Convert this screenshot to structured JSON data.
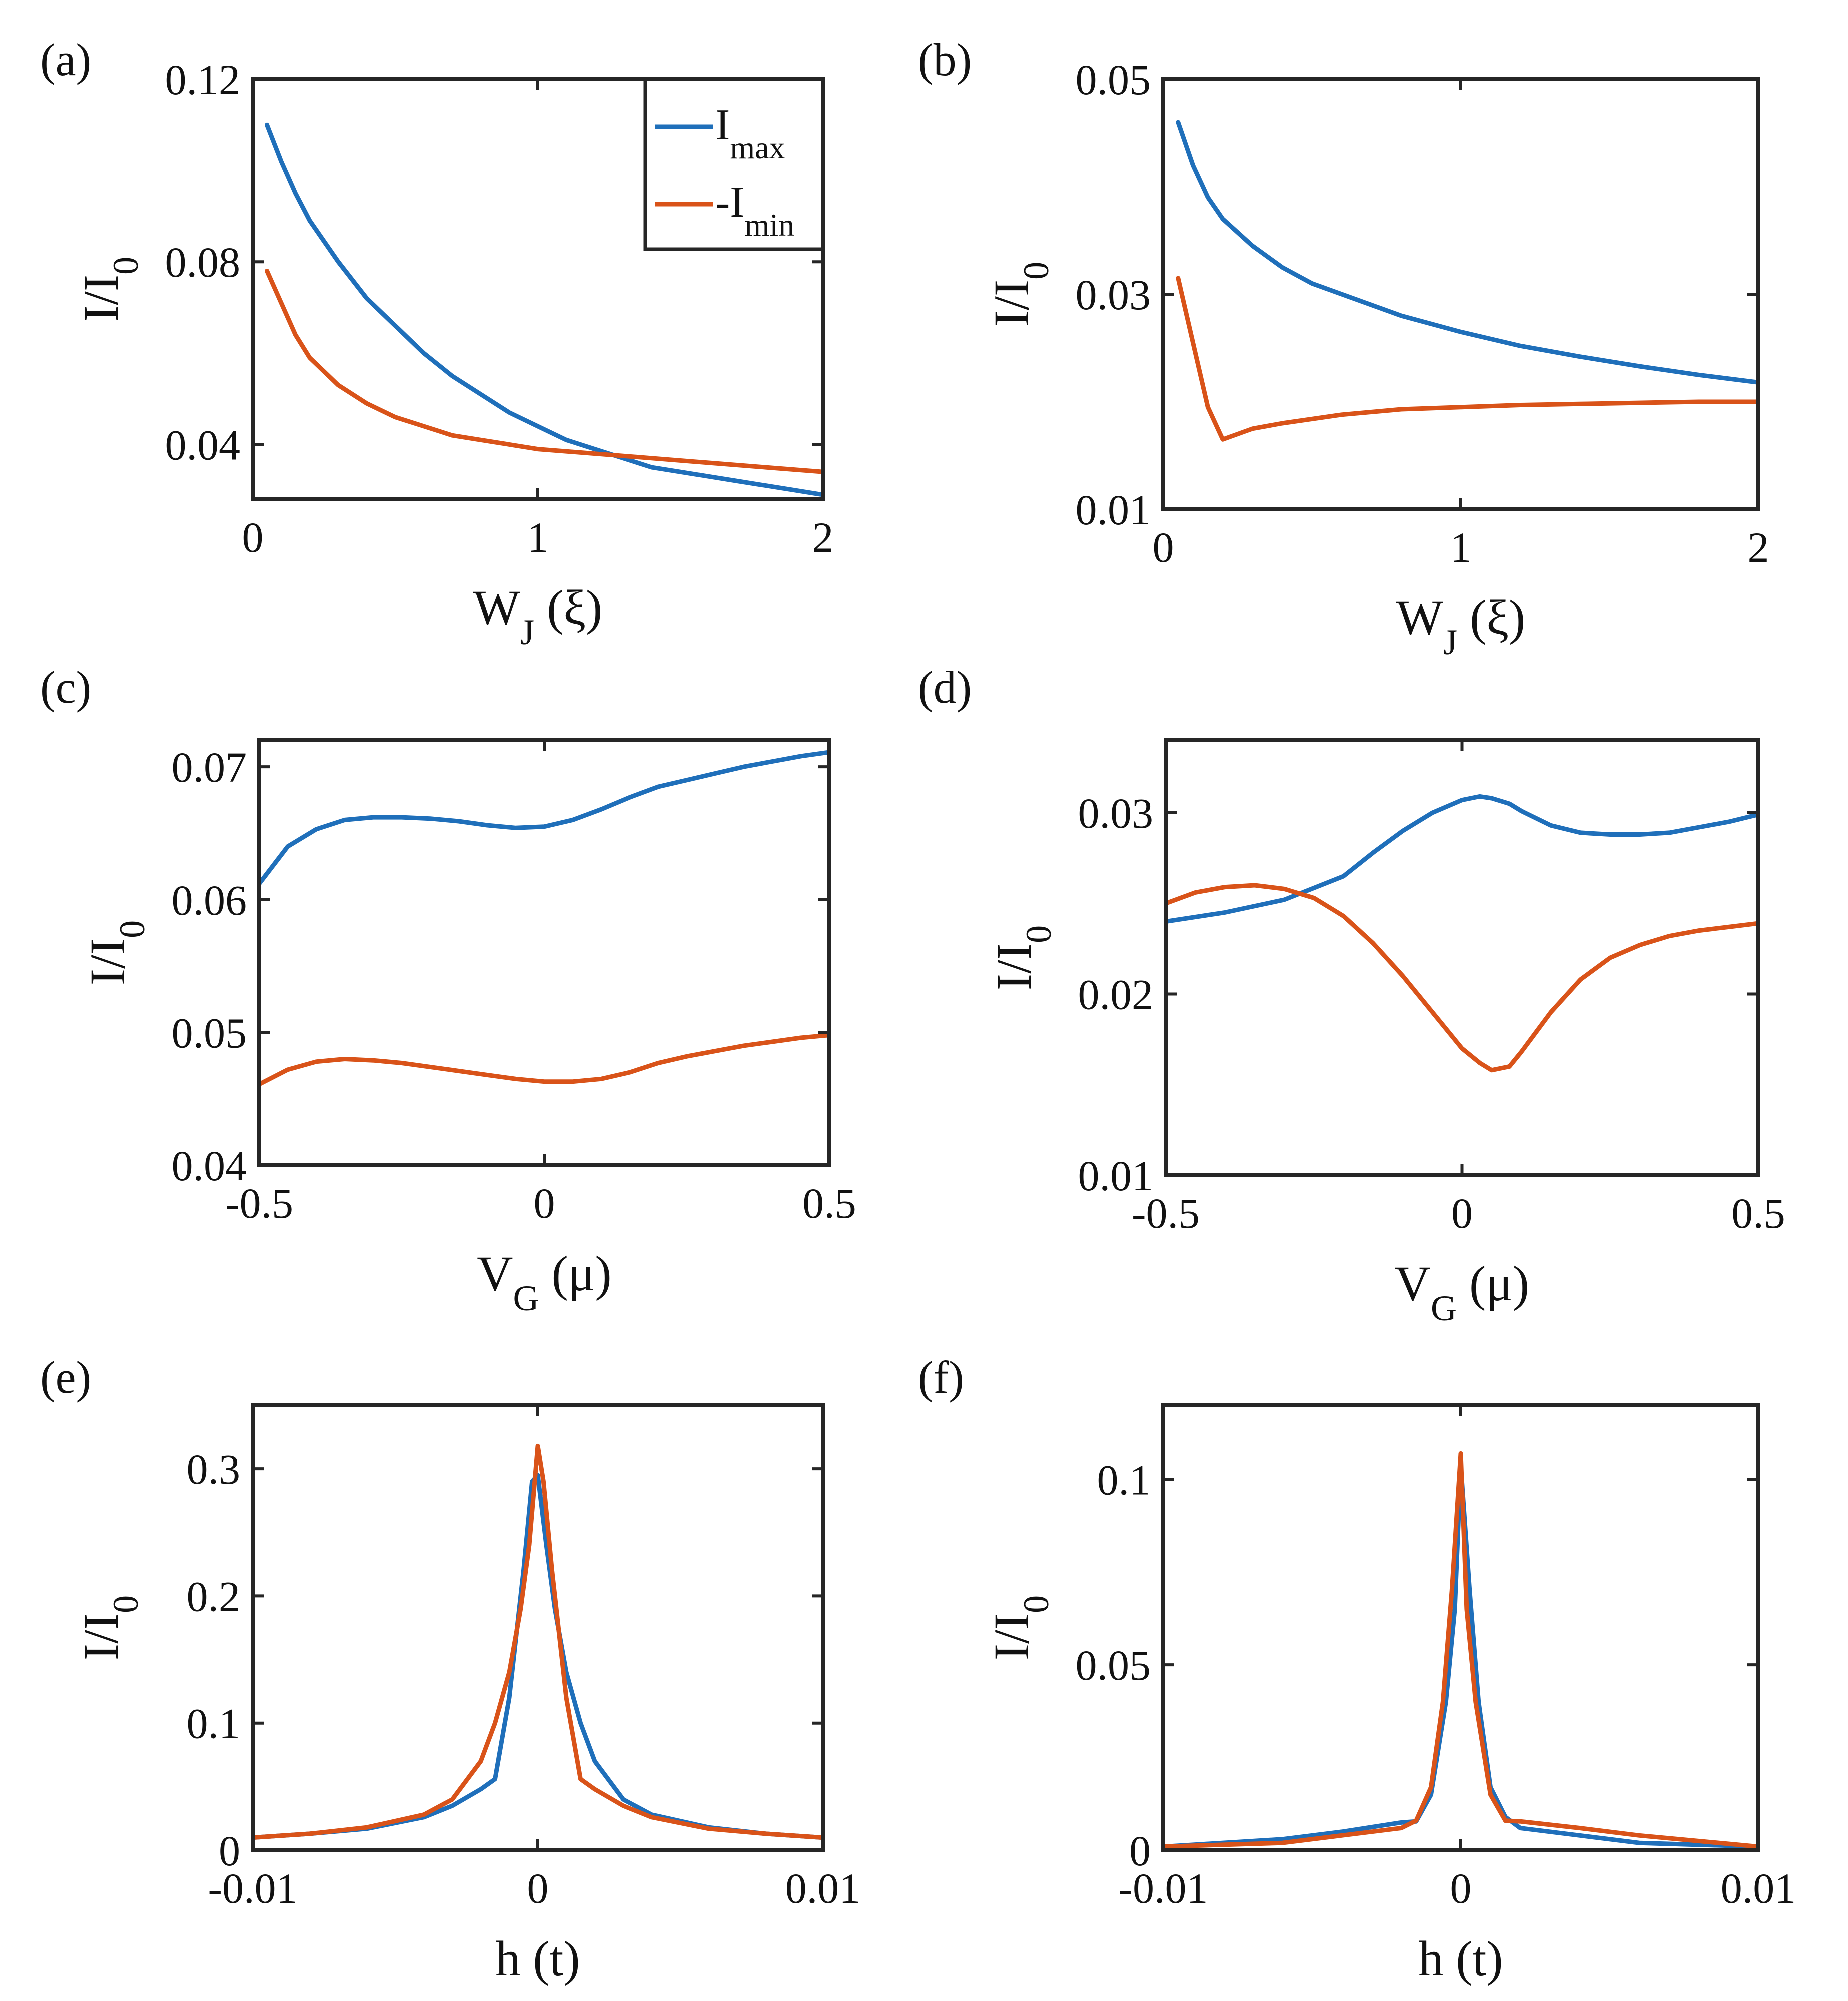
{
  "figure": {
    "description_free": true
  },
  "colors": {
    "imax": "#1f6fba",
    "imin": "#d95319",
    "axis": "#262626"
  },
  "legend": {
    "items": [
      {
        "main": "I",
        "sub": "max",
        "color": "#1f6fba"
      },
      {
        "main": "-I",
        "sub": "min",
        "color": "#d95319"
      }
    ]
  },
  "chart_data": [
    {
      "panel": "(a)",
      "type": "line",
      "xlabel": {
        "main": "W",
        "sub": "J",
        "unit": " (ξ)"
      },
      "ylabel": {
        "main": "I/I",
        "sub": "0"
      },
      "xlim": [
        0,
        2
      ],
      "ylim": [
        0.028,
        0.12
      ],
      "xticks": [
        0,
        1,
        2
      ],
      "xtick_labels": [
        "0",
        "1",
        "2"
      ],
      "yticks": [
        0.04,
        0.08,
        0.12
      ],
      "ytick_labels": [
        "0.04",
        "0.08",
        "0.12"
      ],
      "legend": true,
      "series": [
        {
          "name": "I_max",
          "color": "#1f6fba",
          "x": [
            0.05,
            0.1,
            0.15,
            0.2,
            0.3,
            0.4,
            0.5,
            0.6,
            0.7,
            0.8,
            0.9,
            1.0,
            1.1,
            1.2,
            1.3,
            1.4,
            1.5,
            1.6,
            1.7,
            1.8,
            1.9,
            2.0
          ],
          "y": [
            0.11,
            0.102,
            0.095,
            0.089,
            0.08,
            0.072,
            0.066,
            0.06,
            0.055,
            0.051,
            0.047,
            0.044,
            0.041,
            0.039,
            0.037,
            0.035,
            0.034,
            0.033,
            0.032,
            0.031,
            0.03,
            0.029
          ]
        },
        {
          "name": "-I_min",
          "color": "#d95319",
          "x": [
            0.05,
            0.1,
            0.15,
            0.2,
            0.3,
            0.4,
            0.5,
            0.6,
            0.7,
            0.8,
            0.9,
            1.0,
            1.2,
            1.4,
            1.6,
            1.8,
            2.0
          ],
          "y": [
            0.078,
            0.071,
            0.064,
            0.059,
            0.053,
            0.049,
            0.046,
            0.044,
            0.042,
            0.041,
            0.04,
            0.039,
            0.038,
            0.037,
            0.036,
            0.035,
            0.034
          ]
        }
      ]
    },
    {
      "panel": "(b)",
      "type": "line",
      "xlabel": {
        "main": "W",
        "sub": "J",
        "unit": " (ξ)"
      },
      "ylabel": {
        "main": "I/I",
        "sub": "0"
      },
      "xlim": [
        0,
        2
      ],
      "ylim": [
        0.01,
        0.05
      ],
      "xticks": [
        0,
        1,
        2
      ],
      "xtick_labels": [
        "0",
        "1",
        "2"
      ],
      "yticks": [
        0.01,
        0.03,
        0.05
      ],
      "ytick_labels": [
        "0.01",
        "0.03",
        "0.05"
      ],
      "legend": false,
      "series": [
        {
          "name": "I_max",
          "color": "#1f6fba",
          "x": [
            0.05,
            0.1,
            0.15,
            0.2,
            0.3,
            0.4,
            0.5,
            0.6,
            0.8,
            1.0,
            1.2,
            1.4,
            1.6,
            1.8,
            2.0
          ],
          "y": [
            0.046,
            0.042,
            0.039,
            0.037,
            0.0345,
            0.0325,
            0.031,
            0.03,
            0.028,
            0.0265,
            0.0252,
            0.0242,
            0.0233,
            0.0225,
            0.0218
          ]
        },
        {
          "name": "-I_min",
          "color": "#d95319",
          "x": [
            0.05,
            0.1,
            0.15,
            0.2,
            0.3,
            0.4,
            0.6,
            0.8,
            1.0,
            1.2,
            1.4,
            1.6,
            1.8,
            2.0
          ],
          "y": [
            0.0315,
            0.0255,
            0.0195,
            0.0165,
            0.0175,
            0.018,
            0.0188,
            0.0193,
            0.0195,
            0.0197,
            0.0198,
            0.0199,
            0.02,
            0.02
          ]
        }
      ]
    },
    {
      "panel": "(c)",
      "type": "line",
      "xlabel": {
        "main": "V",
        "sub": "G",
        "unit": " (μ)"
      },
      "ylabel": {
        "main": "I/I",
        "sub": "0"
      },
      "xlim": [
        -0.5,
        0.5
      ],
      "ylim": [
        0.04,
        0.072
      ],
      "xticks": [
        -0.5,
        0,
        0.5
      ],
      "xtick_labels": [
        "-0.5",
        "0",
        "0.5"
      ],
      "yticks": [
        0.04,
        0.05,
        0.06,
        0.07
      ],
      "ytick_labels": [
        "0.04",
        "0.05",
        "0.06",
        "0.07"
      ],
      "legend": false,
      "series": [
        {
          "name": "I_max",
          "color": "#1f6fba",
          "x": [
            -0.5,
            -0.45,
            -0.4,
            -0.35,
            -0.3,
            -0.25,
            -0.2,
            -0.15,
            -0.1,
            -0.05,
            0,
            0.05,
            0.1,
            0.15,
            0.2,
            0.25,
            0.3,
            0.35,
            0.4,
            0.45,
            0.5
          ],
          "y": [
            0.0612,
            0.064,
            0.0653,
            0.066,
            0.0662,
            0.0662,
            0.0661,
            0.0659,
            0.0656,
            0.0654,
            0.0655,
            0.066,
            0.0668,
            0.0677,
            0.0685,
            0.069,
            0.0695,
            0.07,
            0.0704,
            0.0708,
            0.0711
          ]
        },
        {
          "name": "-I_min",
          "color": "#d95319",
          "x": [
            -0.5,
            -0.45,
            -0.4,
            -0.35,
            -0.3,
            -0.25,
            -0.2,
            -0.15,
            -0.1,
            -0.05,
            0,
            0.05,
            0.1,
            0.15,
            0.2,
            0.25,
            0.3,
            0.35,
            0.4,
            0.45,
            0.5
          ],
          "y": [
            0.0461,
            0.0472,
            0.0478,
            0.048,
            0.0479,
            0.0477,
            0.0474,
            0.0471,
            0.0468,
            0.0465,
            0.0463,
            0.0463,
            0.0465,
            0.047,
            0.0477,
            0.0482,
            0.0486,
            0.049,
            0.0493,
            0.0496,
            0.0498
          ]
        }
      ]
    },
    {
      "panel": "(d)",
      "type": "line",
      "xlabel": {
        "main": "V",
        "sub": "G",
        "unit": " (μ)"
      },
      "ylabel": {
        "main": "I/I",
        "sub": "0"
      },
      "xlim": [
        -0.5,
        0.5
      ],
      "ylim": [
        0.01,
        0.034
      ],
      "xticks": [
        -0.5,
        0,
        0.5
      ],
      "xtick_labels": [
        "-0.5",
        "0",
        "0.5"
      ],
      "yticks": [
        0.01,
        0.02,
        0.03
      ],
      "ytick_labels": [
        "0.01",
        "0.02",
        "0.03"
      ],
      "legend": false,
      "series": [
        {
          "name": "I_max",
          "color": "#1f6fba",
          "x": [
            -0.5,
            -0.4,
            -0.3,
            -0.2,
            -0.15,
            -0.1,
            -0.05,
            0,
            0.03,
            0.05,
            0.08,
            0.1,
            0.15,
            0.2,
            0.25,
            0.3,
            0.35,
            0.4,
            0.45,
            0.5
          ],
          "y": [
            0.024,
            0.0245,
            0.0252,
            0.0265,
            0.0278,
            0.029,
            0.03,
            0.0307,
            0.0309,
            0.0308,
            0.0305,
            0.0301,
            0.0293,
            0.0289,
            0.0288,
            0.0288,
            0.0289,
            0.0292,
            0.0295,
            0.0299
          ]
        },
        {
          "name": "-I_min",
          "color": "#d95319",
          "x": [
            -0.5,
            -0.45,
            -0.4,
            -0.35,
            -0.3,
            -0.25,
            -0.2,
            -0.15,
            -0.1,
            -0.05,
            0,
            0.03,
            0.05,
            0.08,
            0.1,
            0.15,
            0.2,
            0.25,
            0.3,
            0.35,
            0.4,
            0.45,
            0.5
          ],
          "y": [
            0.025,
            0.0256,
            0.0259,
            0.026,
            0.0258,
            0.0253,
            0.0243,
            0.0228,
            0.021,
            0.019,
            0.017,
            0.0162,
            0.0158,
            0.016,
            0.0168,
            0.019,
            0.0208,
            0.022,
            0.0227,
            0.0232,
            0.0235,
            0.0237,
            0.0239
          ]
        }
      ]
    },
    {
      "panel": "(e)",
      "type": "line",
      "xlabel": {
        "main": "h (t)",
        "sub": "",
        "unit": ""
      },
      "ylabel": {
        "main": "I/I",
        "sub": "0"
      },
      "xlim": [
        -0.01,
        0.01
      ],
      "ylim": [
        0,
        0.35
      ],
      "xticks": [
        -0.01,
        0,
        0.01
      ],
      "xtick_labels": [
        "-0.01",
        "0",
        "0.01"
      ],
      "yticks": [
        0,
        0.1,
        0.2,
        0.3
      ],
      "ytick_labels": [
        "0",
        "0.1",
        "0.2",
        "0.3"
      ],
      "legend": false,
      "series": [
        {
          "name": "I_max",
          "color": "#1f6fba",
          "x": [
            -0.01,
            -0.008,
            -0.006,
            -0.004,
            -0.003,
            -0.002,
            -0.0015,
            -0.001,
            -0.0005,
            -0.0002,
            0,
            0.0003,
            0.0006,
            0.001,
            0.0015,
            0.002,
            0.003,
            0.004,
            0.006,
            0.008,
            0.01
          ],
          "y": [
            0.01,
            0.013,
            0.017,
            0.026,
            0.035,
            0.048,
            0.056,
            0.12,
            0.22,
            0.29,
            0.295,
            0.24,
            0.19,
            0.14,
            0.1,
            0.07,
            0.04,
            0.028,
            0.018,
            0.013,
            0.01
          ]
        },
        {
          "name": "-I_min",
          "color": "#d95319",
          "x": [
            -0.01,
            -0.008,
            -0.006,
            -0.004,
            -0.003,
            -0.002,
            -0.0015,
            -0.001,
            -0.0006,
            -0.0003,
            0,
            0.0002,
            0.0005,
            0.001,
            0.0015,
            0.002,
            0.003,
            0.004,
            0.006,
            0.008,
            0.01
          ],
          "y": [
            0.01,
            0.013,
            0.018,
            0.028,
            0.04,
            0.07,
            0.1,
            0.14,
            0.19,
            0.24,
            0.318,
            0.29,
            0.22,
            0.12,
            0.056,
            0.048,
            0.035,
            0.026,
            0.017,
            0.013,
            0.01
          ]
        }
      ]
    },
    {
      "panel": "(f)",
      "type": "line",
      "xlabel": {
        "main": "h (t)",
        "sub": "",
        "unit": ""
      },
      "ylabel": {
        "main": "I/I",
        "sub": "0"
      },
      "xlim": [
        -0.01,
        0.01
      ],
      "ylim": [
        0,
        0.12
      ],
      "xticks": [
        -0.01,
        0,
        0.01
      ],
      "xtick_labels": [
        "-0.01",
        "0",
        "0.01"
      ],
      "yticks": [
        0,
        0.05,
        0.1
      ],
      "ytick_labels": [
        "0",
        "0.05",
        "0.1"
      ],
      "legend": false,
      "series": [
        {
          "name": "I_max",
          "color": "#1f6fba",
          "x": [
            -0.01,
            -0.006,
            -0.004,
            -0.002,
            -0.0015,
            -0.001,
            -0.0005,
            -0.0002,
            0,
            0.0003,
            0.0006,
            0.001,
            0.0015,
            0.002,
            0.004,
            0.006,
            0.01
          ],
          "y": [
            0.001,
            0.003,
            0.005,
            0.0075,
            0.0078,
            0.015,
            0.04,
            0.065,
            0.104,
            0.07,
            0.04,
            0.017,
            0.009,
            0.006,
            0.004,
            0.002,
            0.001
          ]
        },
        {
          "name": "-I_min",
          "color": "#d95319",
          "x": [
            -0.01,
            -0.006,
            -0.004,
            -0.002,
            -0.0015,
            -0.001,
            -0.0006,
            -0.0003,
            0,
            0.0002,
            0.0005,
            0.001,
            0.0015,
            0.002,
            0.004,
            0.006,
            0.01
          ],
          "y": [
            0.001,
            0.002,
            0.004,
            0.006,
            0.008,
            0.017,
            0.04,
            0.07,
            0.107,
            0.065,
            0.04,
            0.015,
            0.008,
            0.0078,
            0.006,
            0.004,
            0.001
          ]
        }
      ]
    }
  ]
}
